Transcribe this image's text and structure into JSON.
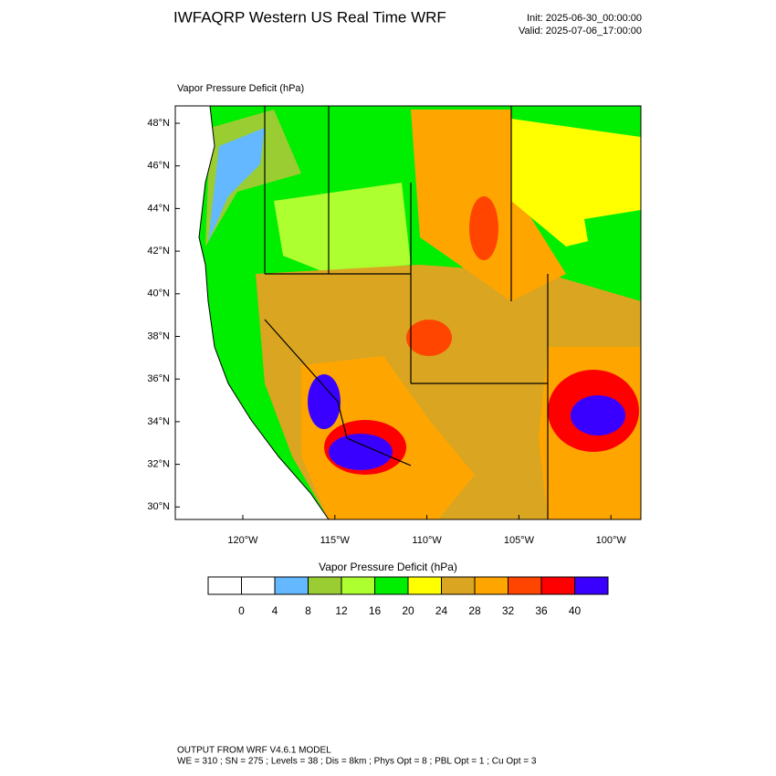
{
  "header": {
    "title": "IWFAQRP Western US Real Time WRF",
    "init": "Init: 2025-06-30_00:00:00",
    "valid": "Valid: 2025-07-06_17:00:00"
  },
  "map": {
    "label": "Vapor Pressure Deficit   (hPa)",
    "lat_labels": [
      "48°N",
      "46°N",
      "44°N",
      "42°N",
      "40°N",
      "38°N",
      "36°N",
      "34°N",
      "32°N",
      "30°N"
    ],
    "lon_labels": [
      "120°W",
      "115°W",
      "110°W",
      "105°W",
      "100°W"
    ]
  },
  "colorbar": {
    "title": "Vapor Pressure Deficit  (hPa)",
    "colors": [
      "#ffffff",
      "#ffffff",
      "#63b8ff",
      "#9acd32",
      "#adff2f",
      "#00ee00",
      "#ffff00",
      "#daa520",
      "#ffa500",
      "#ff4500",
      "#ff0000",
      "#3a00ff"
    ],
    "labels": [
      "0",
      "4",
      "8",
      "12",
      "16",
      "20",
      "24",
      "28",
      "32",
      "36",
      "40"
    ]
  },
  "footer": {
    "line1": "OUTPUT FROM WRF V4.6.1 MODEL",
    "line2": "WE = 310 ; SN = 275 ; Levels = 38 ; Dis = 8km ; Phys Opt = 8 ; PBL Opt = 1 ; Cu Opt = 3"
  }
}
